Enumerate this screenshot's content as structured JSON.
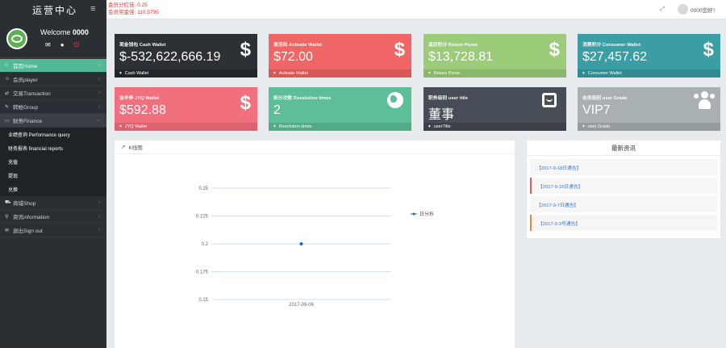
{
  "brand": {
    "title": "运营中心"
  },
  "profile": {
    "welcome_prefix": "Welcome",
    "username": "0000"
  },
  "topbar": {
    "balance1": "会员分红佳: 0.25",
    "balance2": "会员奖金佳: 110.5795",
    "greeting": "0000您好！"
  },
  "nav": [
    {
      "label": "首页Home",
      "icon": "home-icon",
      "active": true
    },
    {
      "label": "会员player",
      "icon": "user-icon"
    },
    {
      "label": "交易Transaction",
      "icon": "shopping-icon"
    },
    {
      "label": "转帐Group",
      "icon": "edit-icon"
    },
    {
      "label": "财务Finance",
      "icon": "card-icon",
      "open": true
    }
  ],
  "finance_sub": [
    {
      "label": "业绩查询 Performance query"
    },
    {
      "label": "财务报表 financial reports"
    },
    {
      "label": "充值"
    },
    {
      "label": "提现"
    },
    {
      "label": "兑换"
    }
  ],
  "nav_bottom": [
    {
      "label": "商城Shop",
      "icon": "cart-icon"
    },
    {
      "label": "资讯information",
      "icon": "pin-icon"
    },
    {
      "label": "退出Sign out",
      "icon": "mail-icon"
    }
  ],
  "cards": [
    {
      "title": "现金钱包 Cash Wallet",
      "value": "$-532,622,666.19",
      "footer": "Cash Wallet",
      "color": "dark",
      "icon": "dollar-icon"
    },
    {
      "title": "激活码 Activate Wallet",
      "value": "$72.00",
      "footer": "Activate Wallet",
      "color": "red",
      "icon": "dollar-icon"
    },
    {
      "title": "返还积分 Return Purse",
      "value": "$13,728.81",
      "footer": "Return Purse",
      "color": "green",
      "icon": "dollar-icon"
    },
    {
      "title": "消费积分 Consumer Wallet",
      "value": "$27,457.62",
      "footer": "Consumer Wallet",
      "color": "teal",
      "icon": "dollar-icon"
    },
    {
      "title": "金羊券 JYQ Wallet",
      "value": "$592.88",
      "footer": "JYQ Wallet",
      "color": "pink",
      "icon": "dollar-icon"
    },
    {
      "title": "拆分次数 Resolution times",
      "value": "2",
      "footer": "Resolution times",
      "color": "mint",
      "icon": "globe-icon"
    },
    {
      "title": "职务级别 user title",
      "value": "董事",
      "footer": "userTitle",
      "color": "slate",
      "icon": "bag-icon"
    },
    {
      "title": "会员级别 user Grade",
      "value": "VIP7",
      "footer": "user Grade",
      "color": "gray",
      "icon": "users-icon"
    }
  ],
  "chart_panel": {
    "title": "K线图"
  },
  "chart_data": {
    "type": "line",
    "title": "",
    "x": [
      "2017-09-06"
    ],
    "series": [
      {
        "name": "日分析",
        "values": [
          0.2
        ]
      }
    ],
    "ylim": [
      0.15,
      0.25
    ],
    "yticks": [
      "0.25",
      "0.225",
      "0.2",
      "0.175",
      "0.15"
    ],
    "grid": true,
    "legend": "right",
    "color": "#2a66b5"
  },
  "news": {
    "title": "最新资讯",
    "items": [
      {
        "label": "【2017-9-18日通告】",
        "accent": "none"
      },
      {
        "label": "【2017-9-16日通告】",
        "accent": "red"
      },
      {
        "label": "【2017-9-7日通告】",
        "accent": "none"
      },
      {
        "label": "【2017-9-3号通告】",
        "accent": "orange"
      }
    ]
  }
}
